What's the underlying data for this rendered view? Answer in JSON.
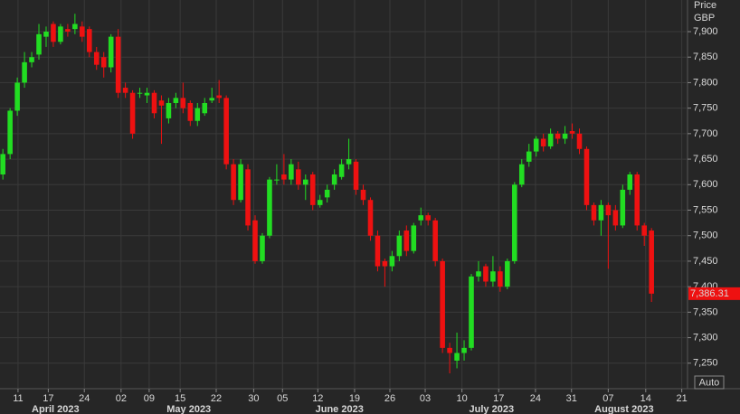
{
  "chart_data": {
    "type": "candlestick",
    "y_label": "Price",
    "currency": "GBP",
    "up_color": "#22dd22",
    "down_color": "#ee1111",
    "grid": true,
    "open": [
      7620,
      7660,
      7745,
      7800,
      7840,
      7855,
      7890,
      7915,
      7880,
      7905,
      7905,
      7910,
      7905,
      7860,
      7850,
      7830,
      7890,
      7790,
      7780,
      7780,
      7775,
      7780,
      7765,
      7730,
      7760,
      7770,
      7760,
      7725,
      7740,
      7765,
      7775,
      7770,
      7640,
      7570,
      7630,
      7530,
      7450,
      7500,
      7610,
      7620,
      7610,
      7630,
      7600,
      7620,
      7560,
      7575,
      7600,
      7615,
      7640,
      7645,
      7590,
      7570,
      7500,
      7450,
      7440,
      7460,
      7510,
      7470,
      7530,
      7540,
      7530,
      7450,
      7280,
      7255,
      7270,
      7280,
      7420,
      7440,
      7410,
      7430,
      7400,
      7450,
      7600,
      7645,
      7665,
      7690,
      7675,
      7700,
      7690,
      7705,
      7700,
      7670,
      7560,
      7530,
      7560,
      7550,
      7520,
      7590,
      7620,
      7520,
      7510
    ],
    "high": [
      7670,
      7750,
      7810,
      7860,
      7860,
      7915,
      7910,
      7920,
      7915,
      7915,
      7935,
      7920,
      7910,
      7870,
      7860,
      7895,
      7905,
      7800,
      7785,
      7790,
      7790,
      7785,
      7775,
      7770,
      7780,
      7800,
      7765,
      7760,
      7770,
      7790,
      7805,
      7775,
      7650,
      7650,
      7640,
      7540,
      7505,
      7615,
      7640,
      7660,
      7650,
      7645,
      7620,
      7625,
      7580,
      7600,
      7630,
      7650,
      7690,
      7650,
      7600,
      7575,
      7510,
      7455,
      7470,
      7510,
      7520,
      7525,
      7555,
      7545,
      7535,
      7455,
      7290,
      7310,
      7295,
      7425,
      7450,
      7445,
      7460,
      7440,
      7455,
      7605,
      7650,
      7680,
      7695,
      7700,
      7710,
      7705,
      7715,
      7720,
      7710,
      7675,
      7565,
      7570,
      7565,
      7560,
      7600,
      7625,
      7625,
      7525,
      7515
    ],
    "low": [
      7610,
      7650,
      7735,
      7790,
      7830,
      7845,
      7870,
      7870,
      7875,
      7890,
      7895,
      7880,
      7850,
      7825,
      7810,
      7820,
      7770,
      7770,
      7690,
      7770,
      7760,
      7730,
      7680,
      7720,
      7750,
      7740,
      7715,
      7715,
      7735,
      7760,
      7760,
      7630,
      7560,
      7565,
      7510,
      7445,
      7445,
      7495,
      7600,
      7600,
      7600,
      7590,
      7570,
      7550,
      7555,
      7565,
      7590,
      7610,
      7630,
      7580,
      7560,
      7490,
      7430,
      7400,
      7430,
      7450,
      7460,
      7465,
      7520,
      7520,
      7440,
      7270,
      7230,
      7240,
      7255,
      7275,
      7410,
      7400,
      7400,
      7390,
      7395,
      7445,
      7595,
      7635,
      7655,
      7665,
      7670,
      7680,
      7680,
      7690,
      7660,
      7550,
      7520,
      7500,
      7435,
      7510,
      7515,
      7580,
      7510,
      7480,
      7370
    ],
    "close": [
      7660,
      7745,
      7800,
      7840,
      7850,
      7895,
      7900,
      7880,
      7910,
      7900,
      7915,
      7890,
      7860,
      7835,
      7830,
      7890,
      7780,
      7780,
      7700,
      7780,
      7780,
      7740,
      7755,
      7760,
      7770,
      7750,
      7725,
      7750,
      7760,
      7770,
      7770,
      7640,
      7570,
      7640,
      7520,
      7450,
      7500,
      7610,
      7610,
      7610,
      7640,
      7600,
      7610,
      7560,
      7570,
      7590,
      7620,
      7640,
      7650,
      7590,
      7570,
      7500,
      7440,
      7440,
      7460,
      7500,
      7470,
      7520,
      7540,
      7530,
      7450,
      7280,
      7270,
      7270,
      7280,
      7420,
      7430,
      7410,
      7430,
      7400,
      7450,
      7600,
      7640,
      7665,
      7690,
      7675,
      7700,
      7690,
      7700,
      7700,
      7670,
      7560,
      7530,
      7560,
      7540,
      7520,
      7590,
      7620,
      7520,
      7500,
      7386.31
    ],
    "last_value_label": "7,386.31",
    "xlim": [
      -0.4,
      95
    ],
    "xticks": [
      {
        "value": 2.1,
        "label": "11"
      },
      {
        "value": 6.3,
        "label": "17"
      },
      {
        "value": 11.3,
        "label": "24"
      },
      {
        "value": 16.4,
        "label": "02"
      },
      {
        "value": 20.3,
        "label": "09"
      },
      {
        "value": 24.6,
        "label": "15"
      },
      {
        "value": 29.6,
        "label": "22"
      },
      {
        "value": 34.8,
        "label": "30"
      },
      {
        "value": 38.8,
        "label": "05"
      },
      {
        "value": 43.7,
        "label": "12"
      },
      {
        "value": 48.8,
        "label": "19"
      },
      {
        "value": 53.7,
        "label": "26"
      },
      {
        "value": 58.6,
        "label": "03"
      },
      {
        "value": 63.7,
        "label": "10"
      },
      {
        "value": 68.8,
        "label": "17"
      },
      {
        "value": 73.9,
        "label": "24"
      },
      {
        "value": 78.9,
        "label": "31"
      },
      {
        "value": 84,
        "label": "07"
      },
      {
        "value": 89.2,
        "label": "14"
      },
      {
        "value": 94.2,
        "label": "21"
      }
    ],
    "month_labels": [
      {
        "value": 7.3,
        "label": "April 2023"
      },
      {
        "value": 25.8,
        "label": "May 2023"
      },
      {
        "value": 46.7,
        "label": "June 2023"
      },
      {
        "value": 67.8,
        "label": "July 2023"
      },
      {
        "value": 86.2,
        "label": "August 2023"
      }
    ],
    "ylim": [
      7200,
      7962
    ],
    "yticks": [
      {
        "value": 7250,
        "label": "7,250"
      },
      {
        "value": 7300,
        "label": "7,300"
      },
      {
        "value": 7350,
        "label": "7,350"
      },
      {
        "value": 7400,
        "label": "7,400"
      },
      {
        "value": 7450,
        "label": "7,450"
      },
      {
        "value": 7500,
        "label": "7,500"
      },
      {
        "value": 7550,
        "label": "7,550"
      },
      {
        "value": 7600,
        "label": "7,600"
      },
      {
        "value": 7650,
        "label": "7,650"
      },
      {
        "value": 7700,
        "label": "7,700"
      },
      {
        "value": 7750,
        "label": "7,750"
      },
      {
        "value": 7800,
        "label": "7,800"
      },
      {
        "value": 7850,
        "label": "7,850"
      },
      {
        "value": 7900,
        "label": "7,900"
      }
    ],
    "auto_button": "Auto"
  }
}
